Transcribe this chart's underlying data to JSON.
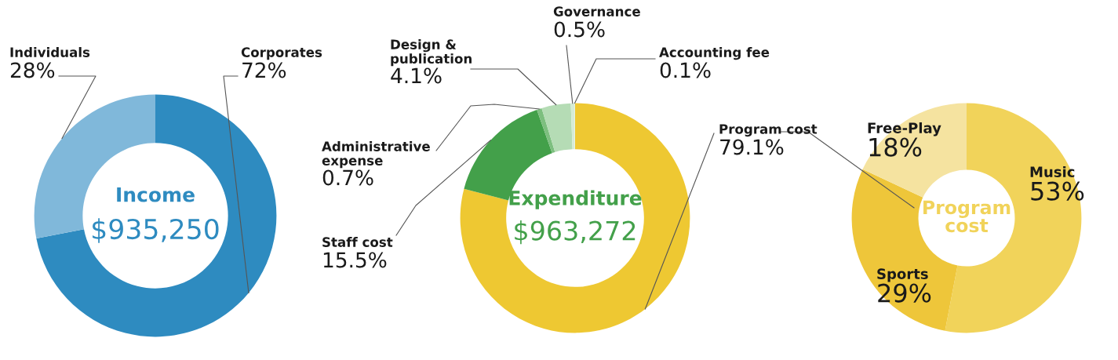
{
  "chart_data": [
    {
      "type": "donut",
      "title": "Income",
      "subtitle": "$935,250",
      "categories": [
        "Corporates",
        "Individuals"
      ],
      "values": [
        72,
        28
      ],
      "value_labels": [
        "72%",
        "28%"
      ],
      "colors": [
        "#2e8bc0",
        "#80b8da"
      ]
    },
    {
      "type": "donut",
      "title": "Expenditure",
      "subtitle": "$963,272",
      "categories": [
        "Program cost",
        "Staff cost",
        "Administrative\nexpense",
        "Design &\npublication",
        "Governance",
        "Accounting fee"
      ],
      "values": [
        79.1,
        15.5,
        0.7,
        4.1,
        0.5,
        0.1
      ],
      "value_labels": [
        "79.1%",
        "15.5%",
        "0.7%",
        "4.1%",
        "0.5%",
        "0.1%"
      ],
      "colors": [
        "#eec832",
        "#43a04a",
        "#7dbf7f",
        "#b5dcb5",
        "#d6ecd6",
        "#e3f1e3"
      ]
    },
    {
      "type": "donut",
      "title": "Program\ncost",
      "categories": [
        "Music",
        "Sports",
        "Free-Play"
      ],
      "values": [
        53,
        29,
        18
      ],
      "value_labels": [
        "53%",
        "29%",
        "18%"
      ],
      "colors": [
        "#f1d35a",
        "#eec63a",
        "#f5e3a0"
      ]
    }
  ]
}
